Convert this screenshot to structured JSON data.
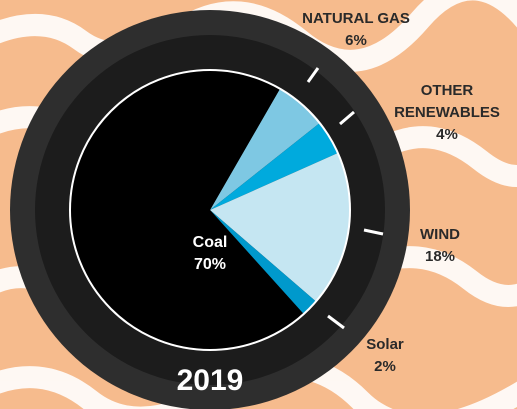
{
  "chart_data": {
    "type": "pie",
    "title": "2019",
    "categories": [
      "NATURAL GAS",
      "OTHER RENEWABLES",
      "WIND",
      "Solar",
      "Coal"
    ],
    "values": [
      6,
      4,
      18,
      2,
      70
    ],
    "value_labels": [
      "6%",
      "4%",
      "18%",
      "2%",
      "70%"
    ],
    "colors": [
      "#7ec8e3",
      "#00aadd",
      "#c5e6f2",
      "#0099cc",
      "#000000"
    ]
  }
}
